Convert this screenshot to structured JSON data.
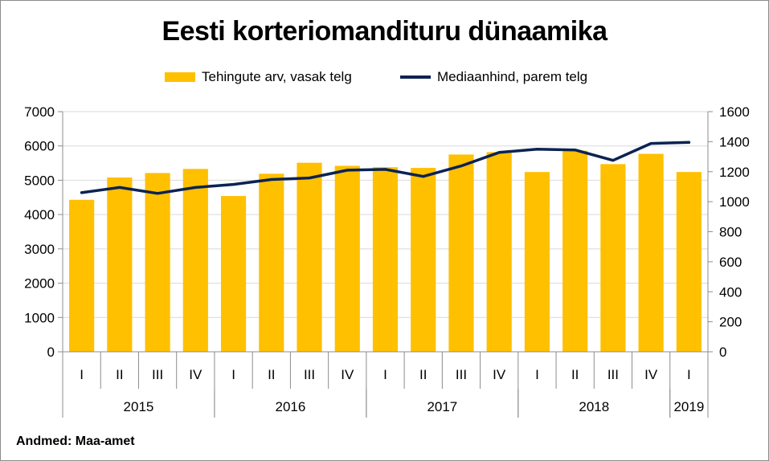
{
  "chart_data": {
    "type": "bar",
    "title": "Eesti korteriomandituru dünaamika",
    "categories": [
      "I",
      "II",
      "III",
      "IV",
      "I",
      "II",
      "III",
      "IV",
      "I",
      "II",
      "III",
      "IV",
      "I",
      "II",
      "III",
      "IV",
      "I"
    ],
    "years": [
      {
        "label": "2015",
        "span": 4
      },
      {
        "label": "2016",
        "span": 4
      },
      {
        "label": "2017",
        "span": 4
      },
      {
        "label": "2018",
        "span": 4
      },
      {
        "label": "2019",
        "span": 1
      }
    ],
    "series": [
      {
        "name": "Tehingute arv, vasak telg",
        "type": "bar",
        "axis": "left",
        "color": "#ffc000",
        "values": [
          4430,
          5080,
          5210,
          5330,
          4540,
          5190,
          5510,
          5420,
          5380,
          5360,
          5750,
          5820,
          5240,
          5860,
          5470,
          5770,
          5240
        ]
      },
      {
        "name": "Mediaanhind, parem telg",
        "type": "line",
        "axis": "right",
        "color": "#0b2353",
        "values": [
          1060,
          1095,
          1055,
          1095,
          1115,
          1148,
          1158,
          1210,
          1215,
          1168,
          1238,
          1328,
          1350,
          1345,
          1275,
          1388,
          1395
        ]
      }
    ],
    "y_left": {
      "min": 0,
      "max": 7000,
      "step": 1000,
      "ticks": [
        "0",
        "1000",
        "2000",
        "3000",
        "4000",
        "5000",
        "6000",
        "7000"
      ]
    },
    "y_right": {
      "min": 0,
      "max": 1600,
      "step": 200,
      "ticks": [
        "0",
        "200",
        "400",
        "600",
        "800",
        "1000",
        "1200",
        "1400",
        "1600"
      ]
    },
    "grid": true,
    "legend_position": "top"
  },
  "source": "Andmed: Maa-amet"
}
